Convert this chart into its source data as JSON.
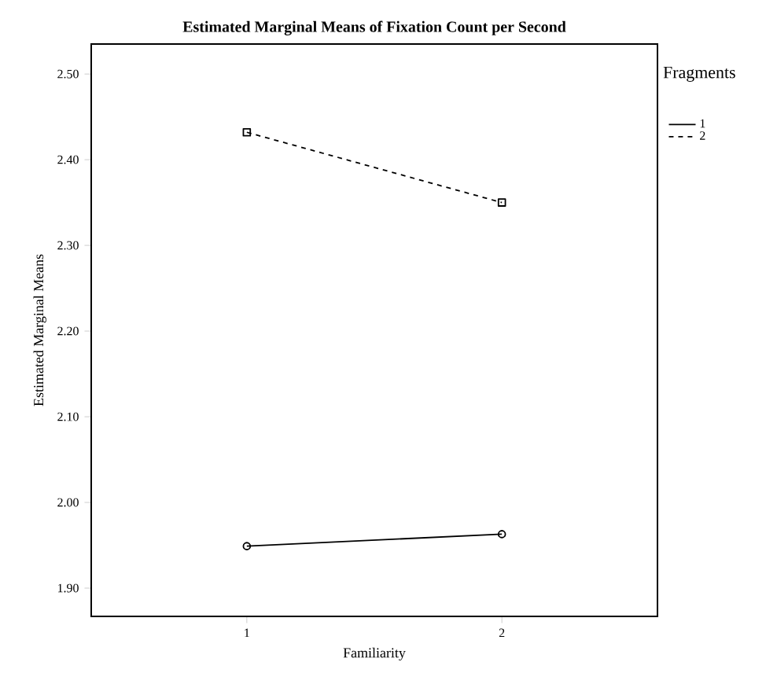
{
  "chart_data": {
    "type": "line",
    "title": "Estimated Marginal Means of  Fixation Count per Second",
    "xlabel": "Familiarity",
    "ylabel": "Estimated Marginal Means",
    "legend_title": "Fragments",
    "categories": [
      "1",
      "2"
    ],
    "ylim": [
      1.867,
      2.535
    ],
    "yticks": [
      {
        "value": 1.9,
        "label": "1.90"
      },
      {
        "value": 2.0,
        "label": "2.00"
      },
      {
        "value": 2.1,
        "label": "2.10"
      },
      {
        "value": 2.2,
        "label": "2.20"
      },
      {
        "value": 2.3,
        "label": "2.30"
      },
      {
        "value": 2.4,
        "label": "2.40"
      },
      {
        "value": 2.5,
        "label": "2.50"
      }
    ],
    "series": [
      {
        "name": "1",
        "color": "#000000",
        "values": [
          1.949,
          1.963
        ],
        "marker": "circle",
        "line_style": "solid"
      },
      {
        "name": "2",
        "color": "#000000",
        "values": [
          2.432,
          2.35
        ],
        "marker": "square",
        "line_style": "dashed"
      }
    ],
    "legend": "top right",
    "grid": false
  }
}
